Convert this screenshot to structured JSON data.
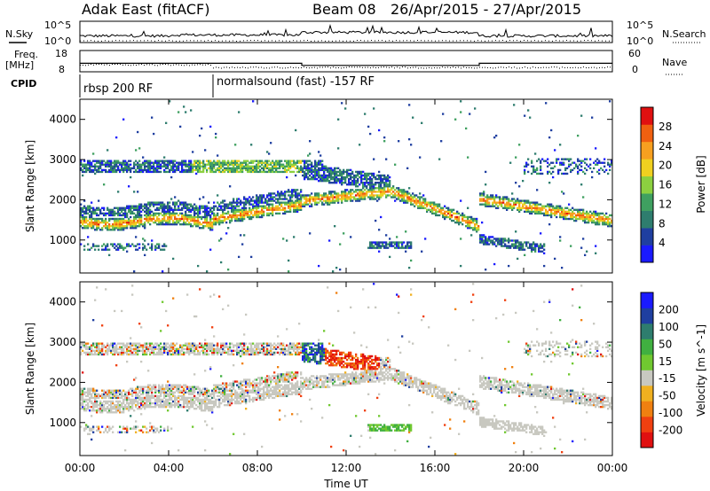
{
  "header": {
    "station": "Adak East (fitACF)",
    "beam": "Beam 08",
    "date_range": "26/Apr/2015 - 27/Apr/2015"
  },
  "side_labels": {
    "nsky": "N.Sky",
    "nsearch": "N.Search",
    "freq": "Freq.",
    "freq_unit": "[MHz]",
    "nave": "Nave",
    "cpid": "CPID"
  },
  "cpid_labels": [
    "rbsp 200 RF",
    "normalsound (fast) -157 RF"
  ],
  "colors": {
    "power": [
      "#1a1aff",
      "#1f3fa0",
      "#2e7d6e",
      "#3fa060",
      "#8cd040",
      "#f0d020",
      "#f7a020",
      "#f06010",
      "#e01010"
    ],
    "velocity": [
      "#e01010",
      "#f04010",
      "#f08010",
      "#f0b020",
      "#c8c8c0",
      "#70c830",
      "#40b040",
      "#2e7d6e",
      "#1f3fa0",
      "#1a1aff"
    ]
  },
  "chart_data": [
    {
      "type": "line",
      "name": "sky-noise-panel",
      "left_ticks": [
        "10^5",
        "10^0"
      ],
      "right_ticks": [
        "10^5",
        "10^0"
      ],
      "left_label": "N.Sky",
      "right_label": "N.Search"
    },
    {
      "type": "line",
      "name": "frequency-panel",
      "left_ticks": [
        "18",
        "8"
      ],
      "right_ticks": [
        "60",
        "0"
      ],
      "left_label": "Freq. [MHz]",
      "right_label": "Nave",
      "freq_segments": [
        {
          "x": [
            0,
            10
          ],
          "y": 12
        },
        {
          "x": [
            10,
            18
          ],
          "y": 11
        },
        {
          "x": [
            18,
            24
          ],
          "y": 12
        }
      ]
    },
    {
      "type": "heatmap",
      "name": "power-panel",
      "ylabel": "Slant Range [km]",
      "yticks": [
        1000,
        2000,
        3000,
        4000
      ],
      "ylim": [
        180,
        4500
      ],
      "xlim": [
        0,
        24
      ],
      "colorbar": {
        "label": "Power [dB]",
        "ticks": [
          4,
          8,
          12,
          16,
          20,
          24,
          28
        ],
        "range": [
          0,
          32
        ]
      }
    },
    {
      "type": "heatmap",
      "name": "velocity-panel",
      "ylabel": "Slant Range [km]",
      "yticks": [
        1000,
        2000,
        3000,
        4000
      ],
      "ylim": [
        180,
        4500
      ],
      "xlim": [
        0,
        24
      ],
      "xlabel": "Time UT",
      "xticks": [
        "00:00",
        "04:00",
        "08:00",
        "12:00",
        "16:00",
        "20:00",
        "00:00"
      ],
      "colorbar": {
        "label": "Velocity [m s^-1]",
        "ticks": [
          200,
          100,
          50,
          15,
          -15,
          -50,
          -100,
          -200
        ]
      }
    }
  ]
}
